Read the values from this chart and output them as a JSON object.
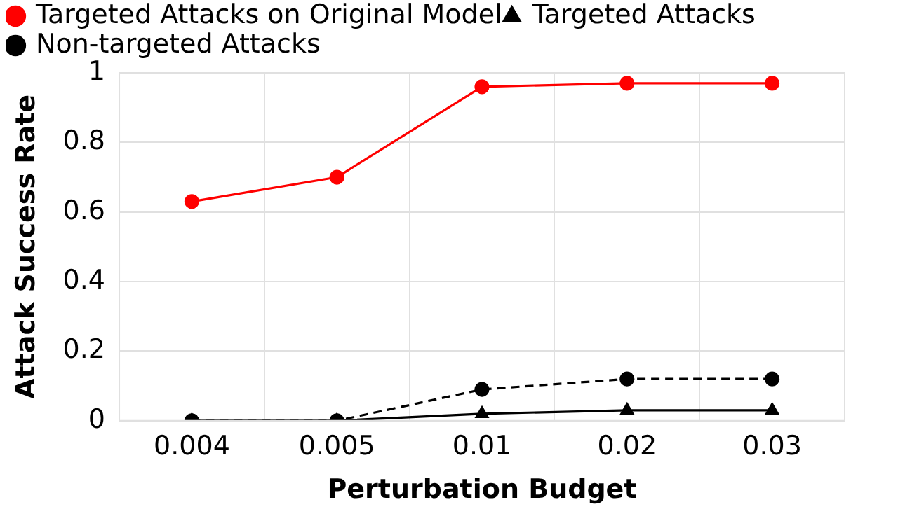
{
  "chart_data": {
    "type": "line",
    "xlabel": "Perturbation Budget",
    "ylabel": "Attack Success Rate",
    "categories": [
      "0.004",
      "0.005",
      "0.01",
      "0.02",
      "0.03"
    ],
    "series": [
      {
        "name": "Targeted Attacks on Original Model",
        "color": "#ff0000",
        "values": [
          0.63,
          0.7,
          0.96,
          0.97,
          0.97
        ],
        "marker": "circle",
        "line_style": "solid"
      },
      {
        "name": "Targeted Attacks",
        "color": "#000000",
        "values": [
          0,
          0,
          0.02,
          0.03,
          0.03
        ],
        "marker": "triangle",
        "line_style": "solid"
      },
      {
        "name": "Non-targeted Attacks",
        "color": "#000000",
        "values": [
          0,
          0,
          0.09,
          0.12,
          0.12
        ],
        "marker": "circle",
        "line_style": "dashed"
      }
    ],
    "ylim": [
      0,
      1
    ],
    "yticks": [
      0,
      0.2,
      0.4,
      0.6,
      0.8,
      1
    ],
    "grid": true,
    "legend": "top left"
  }
}
